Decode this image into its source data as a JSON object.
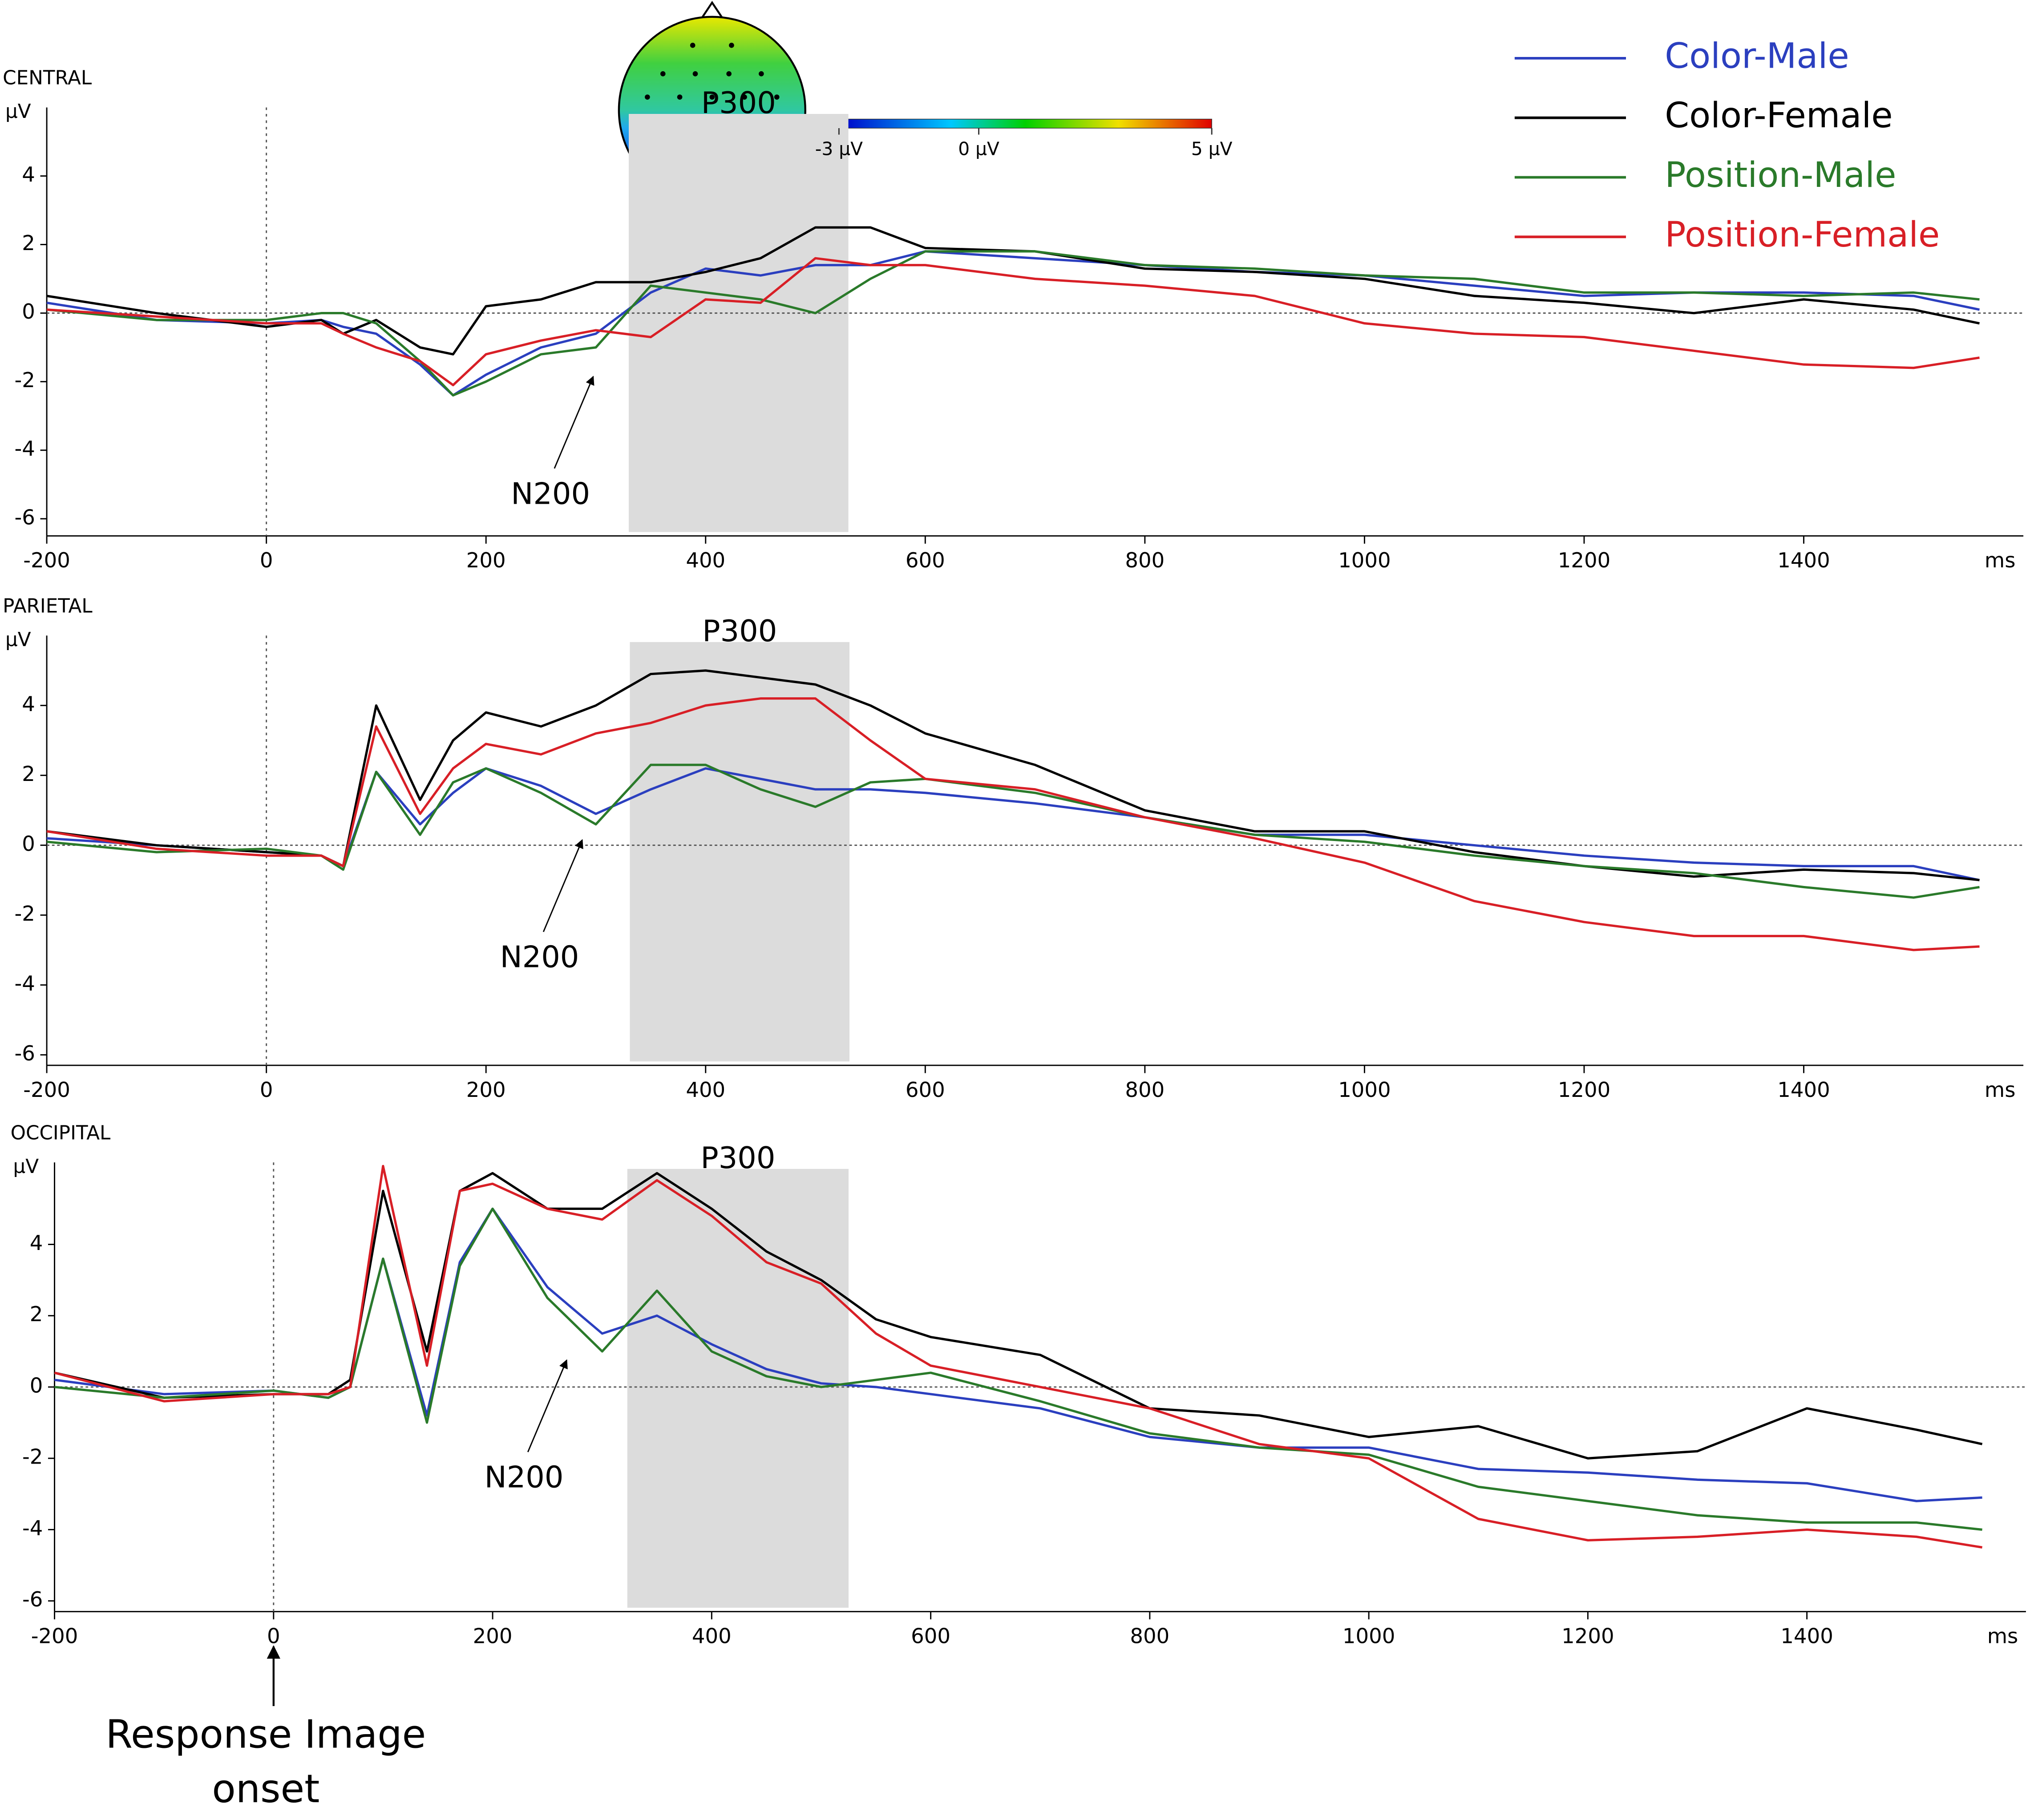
{
  "chart_data": [
    {
      "type": "line",
      "title": "CENTRAL",
      "y_label": "µV",
      "x_unit": "ms",
      "xlim": [
        -200,
        1600
      ],
      "ylim": [
        -6.5,
        6
      ],
      "xticks": [
        -200,
        0,
        200,
        400,
        600,
        800,
        1000,
        1200,
        1400
      ],
      "yticks": [
        -6,
        -4,
        -2,
        0,
        2,
        4
      ],
      "zero_line": true,
      "legend": "upper right",
      "x": [
        -200,
        -100,
        0,
        50,
        70,
        100,
        140,
        170,
        200,
        250,
        300,
        350,
        400,
        450,
        500,
        550,
        600,
        700,
        800,
        900,
        1000,
        1100,
        1200,
        1300,
        1400,
        1500,
        1560
      ],
      "series": [
        {
          "name": "Color-Male",
          "color": "#2b3fbf",
          "values": [
            0.3,
            -0.2,
            -0.3,
            -0.2,
            -0.4,
            -0.6,
            -1.5,
            -2.4,
            -1.8,
            -1.0,
            -0.6,
            0.6,
            1.3,
            1.1,
            1.4,
            1.4,
            1.8,
            1.6,
            1.4,
            1.2,
            1.1,
            0.8,
            0.5,
            0.6,
            0.6,
            0.5,
            0.1
          ]
        },
        {
          "name": "Color-Female",
          "color": "#000000",
          "values": [
            0.5,
            0,
            -0.4,
            -0.2,
            -0.6,
            -0.2,
            -1.0,
            -1.2,
            0.2,
            0.4,
            0.9,
            0.9,
            1.2,
            1.6,
            2.5,
            2.5,
            1.9,
            1.8,
            1.3,
            1.2,
            1.0,
            0.5,
            0.3,
            0,
            0.4,
            0.1,
            -0.3
          ]
        },
        {
          "name": "Position-Male",
          "color": "#2a7a2a",
          "values": [
            0.1,
            -0.2,
            -0.2,
            0,
            0,
            -0.3,
            -1.4,
            -2.4,
            -2.0,
            -1.2,
            -1.0,
            0.8,
            0.6,
            0.4,
            0,
            1.0,
            1.8,
            1.8,
            1.4,
            1.3,
            1.1,
            1.0,
            0.6,
            0.6,
            0.5,
            0.6,
            0.4
          ]
        },
        {
          "name": "Position-Female",
          "color": "#d81f26",
          "values": [
            0.1,
            -0.1,
            -0.3,
            -0.3,
            -0.6,
            -1.0,
            -1.4,
            -2.1,
            -1.2,
            -0.8,
            -0.5,
            -0.7,
            0.4,
            0.3,
            1.6,
            1.4,
            1.4,
            1.0,
            0.8,
            0.5,
            -0.3,
            -0.6,
            -0.7,
            -1.1,
            -1.5,
            -1.6,
            -1.3
          ]
        }
      ],
      "shaded": {
        "text": "P300",
        "x0": 330,
        "x1": 530
      },
      "annotations": [
        {
          "text": "N200",
          "x": 300,
          "y": -1.7
        }
      ],
      "colorbar": {
        "lim": [
          -3,
          5
        ],
        "ticks": [
          {
            "value": -3,
            "label": "-3 µV"
          },
          {
            "value": 0,
            "label": "0 µV"
          },
          {
            "value": 5,
            "label": "5 µV"
          }
        ]
      }
    },
    {
      "type": "line",
      "title": "PARIETAL",
      "y_label": "µV",
      "x_unit": "ms",
      "xlim": [
        -200,
        1600
      ],
      "ylim": [
        -6.3,
        6
      ],
      "xticks": [
        -200,
        0,
        200,
        400,
        600,
        800,
        1000,
        1200,
        1400
      ],
      "yticks": [
        -6,
        -4,
        -2,
        0,
        2,
        4
      ],
      "zero_line": true,
      "x": [
        -200,
        -100,
        0,
        50,
        70,
        100,
        140,
        170,
        200,
        250,
        300,
        350,
        400,
        450,
        500,
        550,
        600,
        700,
        800,
        900,
        1000,
        1100,
        1200,
        1300,
        1400,
        1500,
        1560
      ],
      "series": [
        {
          "color": "#2b3fbf",
          "values": [
            0.2,
            0,
            -0.2,
            -0.3,
            -0.6,
            2.1,
            0.6,
            1.5,
            2.2,
            1.7,
            0.9,
            1.6,
            2.2,
            1.9,
            1.6,
            1.6,
            1.5,
            1.2,
            0.8,
            0.3,
            0.3,
            0,
            -0.3,
            -0.5,
            -0.6,
            -0.6,
            -1.0
          ]
        },
        {
          "color": "#000000",
          "values": [
            0.4,
            0,
            -0.2,
            -0.3,
            -0.6,
            4.0,
            1.3,
            3.0,
            3.8,
            3.4,
            4.0,
            4.9,
            5.0,
            4.8,
            4.6,
            4.0,
            3.2,
            2.3,
            1.0,
            0.4,
            0.4,
            -0.2,
            -0.6,
            -0.9,
            -0.7,
            -0.8,
            -1.0
          ]
        },
        {
          "color": "#2a7a2a",
          "values": [
            0.1,
            -0.2,
            -0.1,
            -0.3,
            -0.7,
            2.1,
            0.3,
            1.8,
            2.2,
            1.5,
            0.6,
            2.3,
            2.3,
            1.6,
            1.1,
            1.8,
            1.9,
            1.5,
            0.8,
            0.3,
            0.1,
            -0.3,
            -0.6,
            -0.8,
            -1.2,
            -1.5,
            -1.2
          ]
        },
        {
          "color": "#d81f26",
          "values": [
            0.4,
            -0.1,
            -0.3,
            -0.3,
            -0.6,
            3.4,
            0.9,
            2.2,
            2.9,
            2.6,
            3.2,
            3.5,
            4.0,
            4.2,
            4.2,
            3.0,
            1.9,
            1.6,
            0.8,
            0.2,
            -0.5,
            -1.6,
            -2.2,
            -2.6,
            -2.6,
            -3.0,
            -2.9
          ]
        }
      ],
      "shaded": {
        "text": "P300",
        "x0": 331,
        "x1": 531
      },
      "annotations": [
        {
          "text": "N200",
          "x": 290,
          "y": 0.3
        }
      ]
    },
    {
      "type": "line",
      "title": "OCCIPITAL",
      "y_label": "µV",
      "x_unit": "ms",
      "xlim": [
        -200,
        1600
      ],
      "ylim": [
        -6.3,
        6.3
      ],
      "xticks": [
        -200,
        0,
        200,
        400,
        600,
        800,
        1000,
        1200,
        1400
      ],
      "yticks": [
        -6,
        -4,
        -2,
        0,
        2,
        4
      ],
      "zero_line": true,
      "x": [
        -200,
        -100,
        0,
        50,
        70,
        100,
        140,
        170,
        200,
        250,
        300,
        350,
        400,
        450,
        500,
        550,
        600,
        700,
        800,
        900,
        1000,
        1100,
        1200,
        1300,
        1400,
        1500,
        1560
      ],
      "series": [
        {
          "color": "#2b3fbf",
          "values": [
            0.2,
            -0.2,
            -0.1,
            -0.3,
            0,
            3.6,
            -0.8,
            3.5,
            5.0,
            2.8,
            1.5,
            2.0,
            1.2,
            0.5,
            0.1,
            0,
            -0.2,
            -0.6,
            -1.4,
            -1.7,
            -1.7,
            -2.3,
            -2.4,
            -2.6,
            -2.7,
            -3.2,
            -3.1
          ]
        },
        {
          "color": "#000000",
          "values": [
            0.4,
            -0.3,
            -0.2,
            -0.2,
            0.2,
            5.5,
            1.0,
            5.5,
            6.0,
            5.0,
            5.0,
            6.0,
            5.0,
            3.8,
            3.0,
            1.9,
            1.4,
            0.9,
            -0.6,
            -0.8,
            -1.4,
            -1.1,
            -2.0,
            -1.8,
            -0.6,
            -1.2,
            -1.6
          ]
        },
        {
          "color": "#2a7a2a",
          "values": [
            0,
            -0.3,
            -0.1,
            -0.3,
            0,
            3.6,
            -1.0,
            3.4,
            5.0,
            2.5,
            1.0,
            2.7,
            1.0,
            0.3,
            0,
            0.2,
            0.4,
            -0.4,
            -1.3,
            -1.7,
            -1.9,
            -2.8,
            -3.2,
            -3.6,
            -3.8,
            -3.8,
            -4.0
          ]
        },
        {
          "color": "#d81f26",
          "values": [
            0.4,
            -0.4,
            -0.2,
            -0.2,
            0,
            6.2,
            0.6,
            5.5,
            5.7,
            5.0,
            4.7,
            5.8,
            4.8,
            3.5,
            2.9,
            1.5,
            0.6,
            0,
            -0.6,
            -1.6,
            -2.0,
            -3.7,
            -4.3,
            -4.2,
            -4.0,
            -4.2,
            -4.5
          ]
        }
      ],
      "shaded": {
        "text": "P300",
        "x0": 323,
        "x1": 525
      },
      "annotations": [
        {
          "text": "N200",
          "x": 270,
          "y": 0.9
        }
      ],
      "onset_label": {
        "lines": [
          "Response Image",
          "onset"
        ],
        "x": 0
      }
    }
  ]
}
